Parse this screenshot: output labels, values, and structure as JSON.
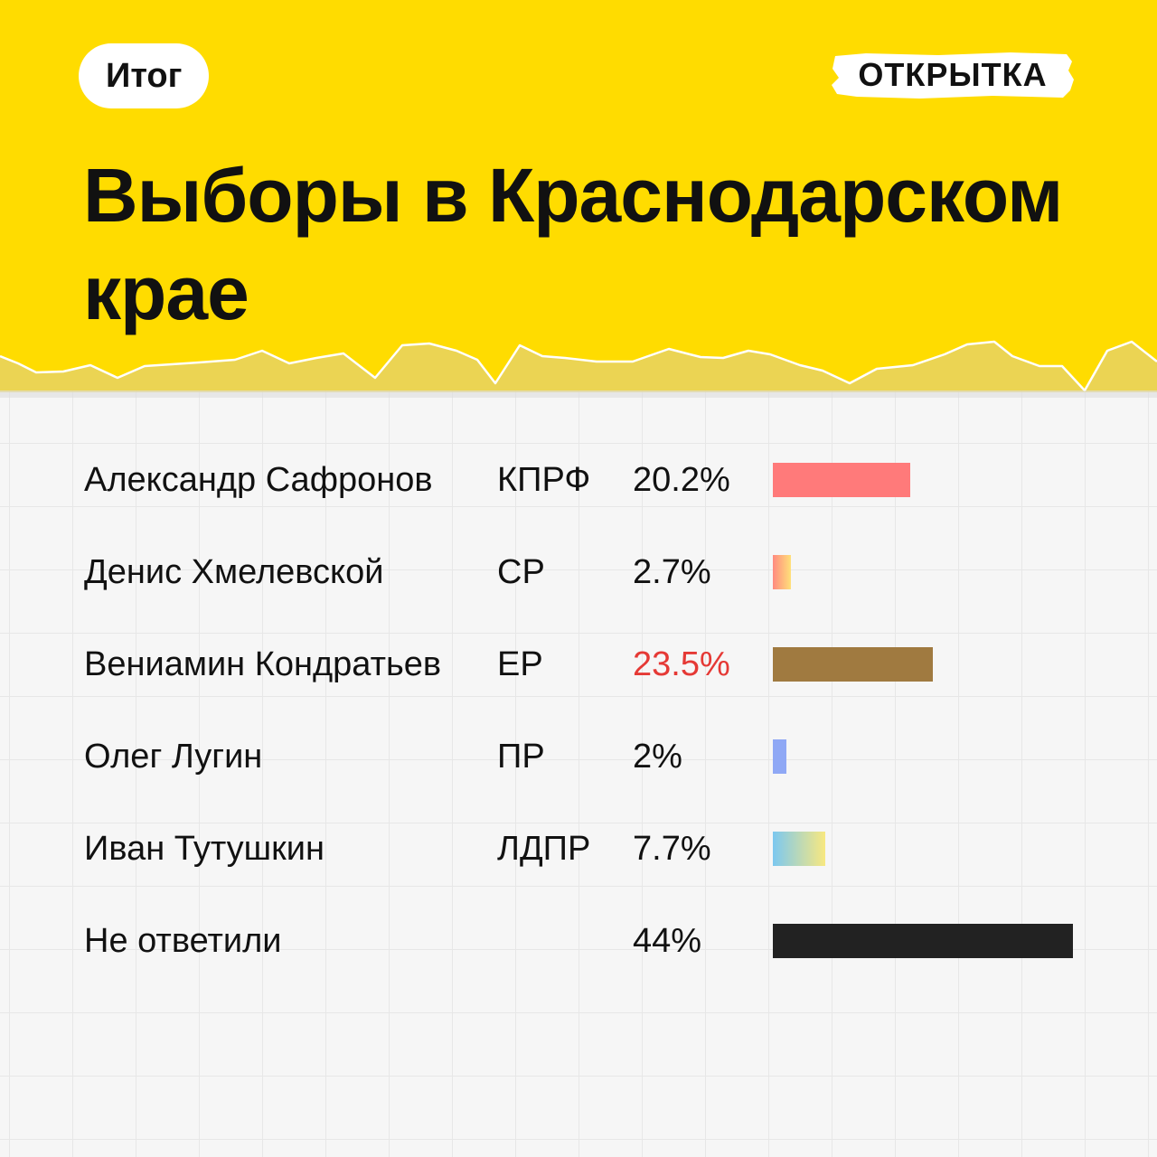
{
  "header": {
    "tag": "Итог",
    "brand": "ОТКРЫТКА",
    "title": "Выборы в Краснодарском крае",
    "background_color": "#FFDC00"
  },
  "chart_data": {
    "type": "bar",
    "orientation": "horizontal",
    "title": "Выборы в Краснодарском крае",
    "unit": "%",
    "xlim": [
      0,
      44
    ],
    "categories": [
      "Александр Сафронов",
      "Денис Хмелевской",
      "Вениамин Кондратьев",
      "Олег Лугин",
      "Иван Тутушкин",
      "Не ответили"
    ],
    "values": [
      20.2,
      2.7,
      23.5,
      2,
      7.7,
      44
    ],
    "rows": [
      {
        "name": "Александр Сафронов",
        "party": "КПРФ",
        "value": 20.2,
        "label": "20.2%",
        "color": "#FF7A7A",
        "highlight": false
      },
      {
        "name": "Денис Хмелевской",
        "party": "СР",
        "value": 2.7,
        "label": "2.7%",
        "color": "#FF8A80",
        "color2": "#FFE07A",
        "highlight": false
      },
      {
        "name": "Вениамин Кондратьев",
        "party": "ЕР",
        "value": 23.5,
        "label": "23.5%",
        "color": "#A07A40",
        "highlight": true,
        "highlight_color": "#E53935"
      },
      {
        "name": "Олег Лугин",
        "party": "ПР",
        "value": 2,
        "label": "2%",
        "color": "#8FA8F5",
        "highlight": false
      },
      {
        "name": "Иван Тутушкин",
        "party": "ЛДПР",
        "value": 7.7,
        "label": "7.7%",
        "color": "#7CC8F0",
        "color2": "#F8E880",
        "highlight": false
      },
      {
        "name": "Не ответили",
        "party": "",
        "value": 44,
        "label": "44%",
        "color": "#222222",
        "highlight": false
      }
    ]
  }
}
